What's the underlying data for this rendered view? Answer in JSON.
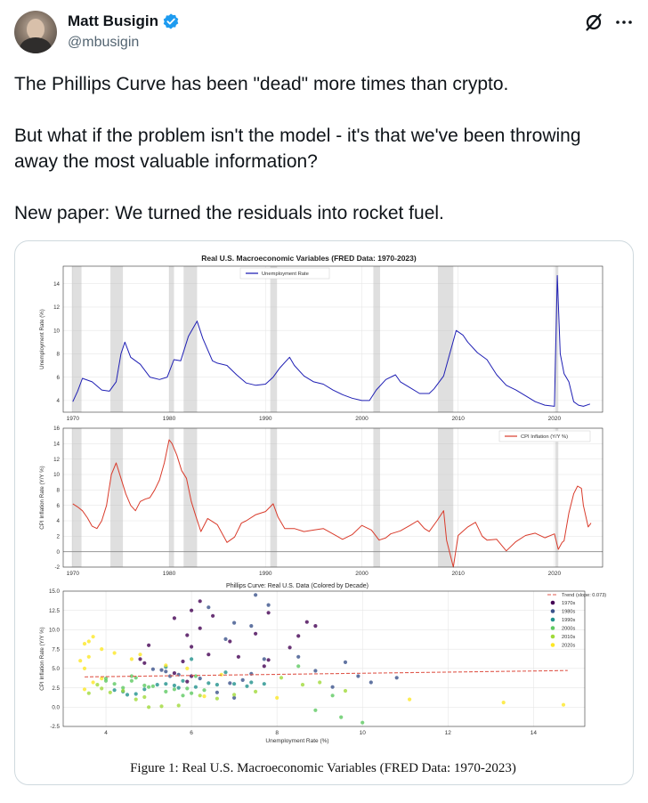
{
  "tweet": {
    "author_name": "Matt Busigin",
    "author_handle": "@mbusigin",
    "paragraphs": [
      "The Phillips Curve has been \"dead\" more times than crypto.",
      "But what if the problem isn't the model - it's that we've been throwing away the most valuable information?",
      "New paper: We turned the residuals into rocket fuel."
    ]
  },
  "figure": {
    "suptitle": "Real U.S. Macroeconomic Variables (FRED Data: 1970-2023)",
    "caption": "Figure 1: Real U.S. Macroeconomic Variables (FRED Data: 1970-2023)"
  },
  "chart_data": [
    {
      "type": "line",
      "title": "Real U.S. Macroeconomic Variables (FRED Data: 1970-2023)",
      "xlabel": "",
      "ylabel": "Unemployment Rate (%)",
      "legend": "Unemployment Rate",
      "color": "#1f1fb4",
      "xlim": [
        1969,
        2025
      ],
      "ylim": [
        3,
        15.5
      ],
      "xticks": [
        1970,
        1980,
        1990,
        2000,
        2010,
        2020
      ],
      "yticks": [
        4,
        6,
        8,
        10,
        12,
        14
      ],
      "recessions": [
        [
          1969.9,
          1970.9
        ],
        [
          1973.9,
          1975.2
        ],
        [
          1980.0,
          1980.5
        ],
        [
          1981.5,
          1982.9
        ],
        [
          1990.5,
          1991.2
        ],
        [
          2001.2,
          2001.9
        ],
        [
          2007.9,
          2009.5
        ],
        [
          2020.1,
          2020.4
        ]
      ],
      "x": [
        1970,
        1970.5,
        1971,
        1972,
        1973,
        1973.8,
        1974.5,
        1975.0,
        1975.4,
        1976,
        1977,
        1978,
        1979,
        1979.8,
        1980.5,
        1981.2,
        1982.0,
        1982.9,
        1983.5,
        1984.5,
        1985,
        1986,
        1987,
        1988,
        1989,
        1990,
        1990.8,
        1991.5,
        1992.5,
        1993,
        1994,
        1995,
        1996,
        1997,
        1998,
        1999,
        2000,
        2000.8,
        2001.5,
        2002.5,
        2003.5,
        2004,
        2005,
        2006,
        2007,
        2007.5,
        2008.5,
        2009.3,
        2009.8,
        2010.5,
        2011,
        2012,
        2013,
        2014,
        2015,
        2016,
        2017,
        2018,
        2019,
        2020.0,
        2020.3,
        2020.6,
        2021,
        2021.5,
        2022,
        2022.5,
        2023,
        2023.7
      ],
      "y": [
        3.9,
        4.8,
        5.9,
        5.6,
        4.9,
        4.8,
        5.6,
        8.0,
        9.0,
        7.7,
        7.1,
        6.0,
        5.8,
        6.0,
        7.5,
        7.4,
        9.5,
        10.8,
        9.3,
        7.4,
        7.2,
        7.0,
        6.2,
        5.5,
        5.3,
        5.4,
        6.0,
        6.8,
        7.7,
        7.0,
        6.1,
        5.6,
        5.4,
        4.9,
        4.5,
        4.2,
        4.0,
        4.0,
        4.9,
        5.8,
        6.2,
        5.6,
        5.1,
        4.6,
        4.6,
        5.0,
        6.1,
        8.5,
        10.0,
        9.6,
        9.0,
        8.1,
        7.5,
        6.2,
        5.3,
        4.9,
        4.4,
        3.9,
        3.6,
        3.5,
        14.7,
        8.0,
        6.3,
        5.6,
        3.9,
        3.6,
        3.5,
        3.7
      ]
    },
    {
      "type": "line",
      "title": "",
      "xlabel": "",
      "ylabel": "CPI Inflation Rate (Y/Y %)",
      "legend": "CPI Inflation (Y/Y %)",
      "color": "#d93b2b",
      "xlim": [
        1969,
        2025
      ],
      "ylim": [
        -2,
        16
      ],
      "xticks": [
        1970,
        1980,
        1990,
        2000,
        2010,
        2020
      ],
      "yticks": [
        -2,
        0,
        2,
        4,
        6,
        8,
        10,
        12,
        14,
        16
      ],
      "recessions": [
        [
          1969.9,
          1970.9
        ],
        [
          1973.9,
          1975.2
        ],
        [
          1980.0,
          1980.5
        ],
        [
          1981.5,
          1982.9
        ],
        [
          1990.5,
          1991.2
        ],
        [
          2001.2,
          2001.9
        ],
        [
          2007.9,
          2009.5
        ],
        [
          2020.1,
          2020.4
        ]
      ],
      "x": [
        1970,
        1970.5,
        1971,
        1971.5,
        1972,
        1972.5,
        1973,
        1973.5,
        1974,
        1974.5,
        1975,
        1975.5,
        1976,
        1976.5,
        1977,
        1977.5,
        1978,
        1978.5,
        1979,
        1979.5,
        1980,
        1980.3,
        1980.8,
        1981.3,
        1981.8,
        1982.3,
        1982.8,
        1983.3,
        1984,
        1985,
        1986,
        1986.8,
        1987.5,
        1988,
        1989,
        1990,
        1990.8,
        1991.3,
        1992,
        1993,
        1994,
        1995,
        1996,
        1997,
        1998,
        1999,
        2000,
        2001,
        2001.8,
        2002.5,
        2003,
        2004,
        2005,
        2005.8,
        2006.5,
        2007,
        2007.8,
        2008.5,
        2008.8,
        2009.5,
        2010,
        2011,
        2011.8,
        2012.5,
        2013,
        2014,
        2015,
        2016,
        2017,
        2018,
        2019,
        2020,
        2020.4,
        2020.8,
        2021,
        2021.5,
        2022,
        2022.4,
        2022.8,
        2023,
        2023.5,
        2023.8
      ],
      "y": [
        6.2,
        5.8,
        5.3,
        4.4,
        3.3,
        3.0,
        4.0,
        6.0,
        10.0,
        11.5,
        9.5,
        7.5,
        6.0,
        5.3,
        6.5,
        6.8,
        7.0,
        8.0,
        9.3,
        11.5,
        14.5,
        14.0,
        12.5,
        10.5,
        9.5,
        6.5,
        4.5,
        2.6,
        4.3,
        3.5,
        1.2,
        1.9,
        3.7,
        4.0,
        4.8,
        5.2,
        6.2,
        4.5,
        3.0,
        3.0,
        2.6,
        2.8,
        3.0,
        2.3,
        1.6,
        2.2,
        3.4,
        2.8,
        1.5,
        1.8,
        2.3,
        2.7,
        3.4,
        4.0,
        3.0,
        2.6,
        4.0,
        5.3,
        1.5,
        -2.0,
        2.1,
        3.2,
        3.8,
        2.0,
        1.5,
        1.6,
        0.1,
        1.3,
        2.1,
        2.4,
        1.8,
        2.3,
        0.3,
        1.2,
        1.4,
        5.0,
        7.5,
        8.5,
        8.2,
        6.0,
        3.2,
        3.7
      ]
    },
    {
      "type": "scatter",
      "title": "Phillips Curve: Real U.S. Data (Colored by Decade)",
      "xlabel": "Unemployment Rate (%)",
      "ylabel": "CPI Inflation Rate (Y/Y %)",
      "xlim": [
        3,
        15.2
      ],
      "ylim": [
        -2.5,
        15
      ],
      "xticks": [
        4,
        6,
        8,
        10,
        12,
        14
      ],
      "yticks": [
        -2.5,
        0.0,
        2.5,
        5.0,
        7.5,
        10.0,
        12.5,
        15.0
      ],
      "trend": {
        "label": "Trend (slope: 0.073)",
        "slope": 0.073,
        "intercept": 3.65,
        "x_range": [
          3.5,
          14.8
        ],
        "color": "#e05a4e"
      },
      "series": [
        {
          "name": "1970s",
          "color": "#440154",
          "points": [
            [
              4.9,
              5.7
            ],
            [
              5.6,
              4.4
            ],
            [
              5.9,
              3.3
            ],
            [
              6.0,
              4.0
            ],
            [
              6.5,
              11.8
            ],
            [
              7.8,
              12.2
            ],
            [
              8.5,
              9.2
            ],
            [
              8.7,
              11.0
            ],
            [
              7.5,
              9.5
            ],
            [
              7.7,
              5.3
            ],
            [
              7.1,
              6.5
            ],
            [
              6.4,
              6.8
            ],
            [
              6.0,
              7.8
            ],
            [
              5.9,
              9.3
            ],
            [
              5.6,
              11.5
            ],
            [
              4.8,
              6.2
            ],
            [
              5.8,
              5.9
            ],
            [
              6.9,
              8.5
            ],
            [
              6.2,
              10.2
            ],
            [
              8.9,
              10.5
            ],
            [
              8.3,
              7.7
            ],
            [
              7.8,
              6.1
            ],
            [
              5.0,
              8.0
            ],
            [
              6.0,
              12.5
            ],
            [
              6.2,
              13.7
            ]
          ]
        },
        {
          "name": "1980s",
          "color": "#3b528b",
          "points": [
            [
              7.5,
              14.5
            ],
            [
              7.8,
              13.2
            ],
            [
              7.4,
              10.5
            ],
            [
              7.0,
              10.9
            ],
            [
              8.5,
              6.5
            ],
            [
              9.6,
              5.8
            ],
            [
              10.8,
              3.8
            ],
            [
              10.2,
              3.2
            ],
            [
              9.3,
              2.6
            ],
            [
              7.4,
              4.3
            ],
            [
              7.2,
              3.5
            ],
            [
              7.0,
              1.2
            ],
            [
              6.6,
              1.9
            ],
            [
              6.2,
              3.7
            ],
            [
              5.5,
              4.0
            ],
            [
              5.3,
              4.8
            ],
            [
              5.4,
              4.6
            ],
            [
              6.8,
              8.8
            ],
            [
              8.9,
              4.7
            ],
            [
              9.9,
              4.0
            ],
            [
              5.7,
              4.2
            ],
            [
              6.9,
              3.1
            ],
            [
              7.7,
              6.2
            ],
            [
              5.1,
              4.9
            ],
            [
              6.4,
              12.9
            ]
          ]
        },
        {
          "name": "1990s",
          "color": "#21918c",
          "points": [
            [
              5.4,
              5.2
            ],
            [
              6.0,
              6.2
            ],
            [
              6.8,
              4.5
            ],
            [
              7.7,
              3.0
            ],
            [
              7.0,
              3.0
            ],
            [
              6.1,
              2.6
            ],
            [
              5.6,
              2.8
            ],
            [
              5.4,
              3.0
            ],
            [
              4.9,
              2.3
            ],
            [
              4.5,
              1.6
            ],
            [
              4.2,
              2.2
            ],
            [
              6.4,
              3.1
            ],
            [
              7.4,
              3.2
            ],
            [
              5.7,
              2.5
            ],
            [
              4.7,
              1.7
            ],
            [
              4.4,
              2.0
            ],
            [
              6.6,
              2.9
            ],
            [
              5.8,
              3.4
            ],
            [
              5.2,
              2.9
            ],
            [
              7.3,
              2.7
            ]
          ]
        },
        {
          "name": "2000s",
          "color": "#5ec962",
          "points": [
            [
              4.0,
              3.4
            ],
            [
              4.0,
              3.7
            ],
            [
              4.9,
              2.8
            ],
            [
              5.8,
              1.5
            ],
            [
              6.0,
              1.8
            ],
            [
              5.6,
              2.3
            ],
            [
              5.1,
              2.7
            ],
            [
              4.6,
              3.4
            ],
            [
              4.6,
              4.0
            ],
            [
              5.0,
              2.6
            ],
            [
              6.1,
              4.0
            ],
            [
              8.5,
              5.3
            ],
            [
              9.3,
              1.5
            ],
            [
              10.0,
              -2.0
            ],
            [
              9.5,
              -1.3
            ],
            [
              8.9,
              -0.4
            ],
            [
              5.4,
              2.0
            ],
            [
              4.7,
              3.8
            ],
            [
              4.4,
              2.5
            ],
            [
              5.9,
              2.4
            ],
            [
              4.2,
              3.0
            ],
            [
              6.3,
              2.2
            ]
          ]
        },
        {
          "name": "2010s",
          "color": "#a0da39",
          "points": [
            [
              9.6,
              2.1
            ],
            [
              9.0,
              3.2
            ],
            [
              8.1,
              3.8
            ],
            [
              7.5,
              2.0
            ],
            [
              6.2,
              1.5
            ],
            [
              5.3,
              0.1
            ],
            [
              4.9,
              1.3
            ],
            [
              4.4,
              2.1
            ],
            [
              3.9,
              2.4
            ],
            [
              3.6,
              1.8
            ],
            [
              7.0,
              1.6
            ],
            [
              8.6,
              2.9
            ],
            [
              5.7,
              0.2
            ],
            [
              4.7,
              1.0
            ],
            [
              3.8,
              2.9
            ],
            [
              6.6,
              1.1
            ],
            [
              4.1,
              1.9
            ],
            [
              5.0,
              0.0
            ]
          ]
        },
        {
          "name": "2020s",
          "color": "#fde725",
          "points": [
            [
              3.5,
              2.3
            ],
            [
              14.7,
              0.3
            ],
            [
              13.3,
              0.6
            ],
            [
              11.1,
              1.0
            ],
            [
              8.0,
              1.2
            ],
            [
              6.3,
              1.4
            ],
            [
              5.9,
              5.0
            ],
            [
              5.4,
              5.4
            ],
            [
              4.6,
              6.2
            ],
            [
              4.2,
              7.0
            ],
            [
              3.9,
              7.5
            ],
            [
              3.6,
              8.5
            ],
            [
              3.7,
              9.1
            ],
            [
              3.5,
              8.2
            ],
            [
              3.6,
              6.5
            ],
            [
              3.5,
              5.0
            ],
            [
              3.9,
              3.7
            ],
            [
              3.7,
              3.2
            ],
            [
              6.7,
              4.2
            ],
            [
              4.8,
              6.8
            ],
            [
              3.4,
              6.0
            ]
          ]
        }
      ]
    }
  ]
}
